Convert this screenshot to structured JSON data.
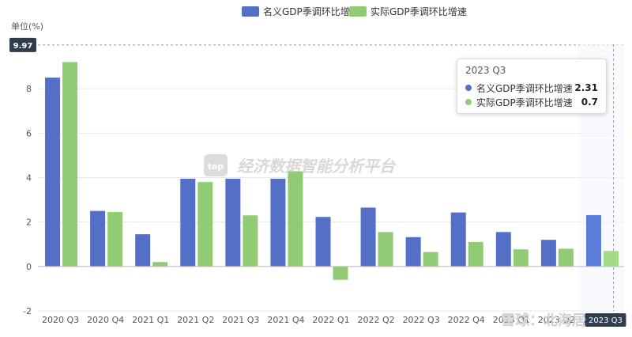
{
  "chart_data": {
    "type": "bar",
    "unit_label": "单位(%)",
    "categories": [
      "2020 Q3",
      "2020 Q4",
      "2021 Q1",
      "2021 Q2",
      "2021 Q3",
      "2021 Q4",
      "2022 Q1",
      "2022 Q2",
      "2022 Q3",
      "2022 Q4",
      "2023 Q1",
      "2023 Q2",
      "2023 Q3"
    ],
    "series": [
      {
        "name": "名义GDP季调环比增速",
        "color": "#5470c6",
        "values": [
          8.5,
          2.5,
          1.45,
          3.95,
          3.95,
          3.95,
          2.23,
          2.65,
          1.32,
          2.43,
          1.55,
          1.2,
          2.31
        ]
      },
      {
        "name": "实际GDP季调环比增速",
        "color": "#91cc75",
        "values": [
          9.2,
          2.45,
          0.2,
          3.8,
          2.3,
          4.28,
          -0.6,
          1.55,
          0.65,
          1.1,
          0.77,
          0.8,
          0.7
        ]
      }
    ],
    "ylim": [
      -2,
      10
    ],
    "yticks": [
      -2,
      0,
      2,
      4,
      6,
      8
    ],
    "grid": true,
    "legend": "top-center",
    "pointer_value": "9.97",
    "highlighted_index": 12,
    "tooltip": {
      "title": "2023 Q3",
      "values": [
        "2.31",
        "0.7"
      ]
    }
  },
  "watermark": {
    "logo_text": "tap",
    "text": "经济数据智能分析平台"
  },
  "corner_watermark": "雪球：北海居"
}
